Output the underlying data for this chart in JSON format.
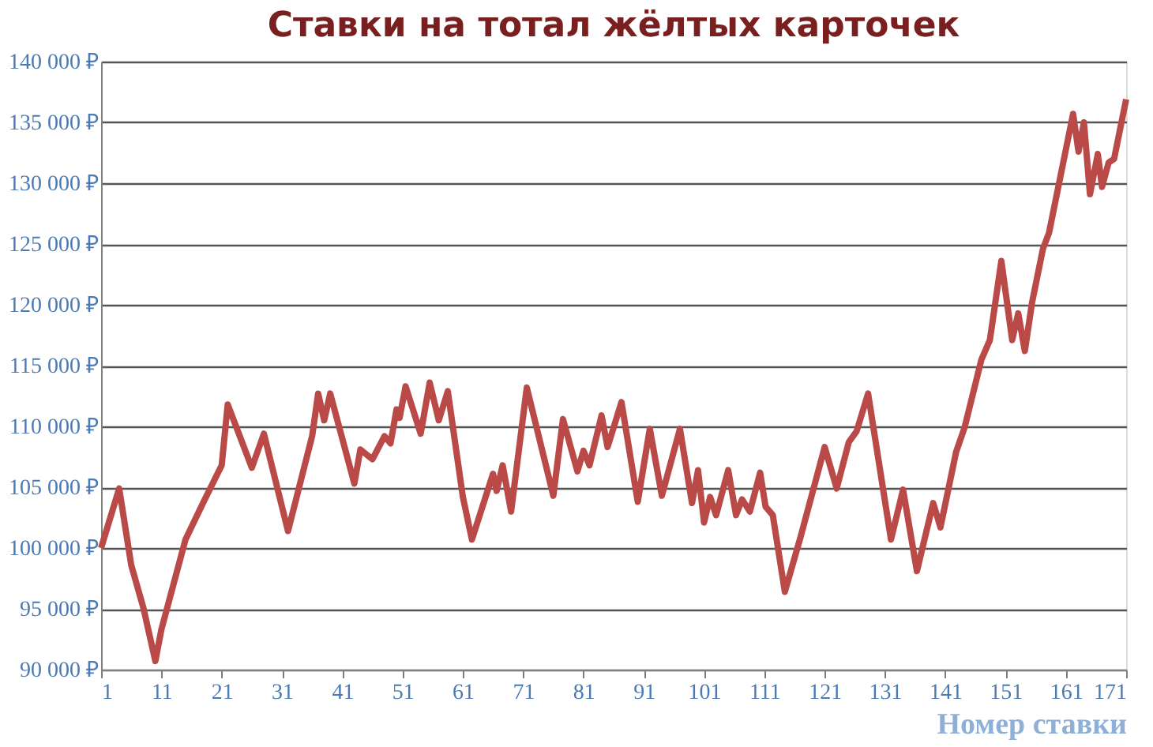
{
  "chart_data": {
    "type": "line",
    "title": "Ставки на тотал жёлтых карточек",
    "xlabel": "Номер ставки",
    "series": [
      {
        "color": "#b94a48",
        "x": [
          1,
          4,
          6,
          8,
          10,
          11,
          15,
          18,
          21,
          22,
          26,
          28,
          32,
          36,
          37,
          38,
          39,
          43,
          44,
          46,
          48,
          49,
          50,
          50.5,
          51.5,
          54,
          55.5,
          57,
          58.5,
          61,
          62.5,
          66,
          66.6,
          67.6,
          69,
          71.6,
          76,
          77.6,
          80,
          81,
          82,
          84,
          85,
          87.3,
          90,
          92,
          94,
          97,
          99,
          100,
          101,
          102,
          103,
          105,
          106.3,
          107.3,
          108.6,
          110.3,
          111.2,
          112.4,
          114.4,
          117,
          121,
          123,
          125,
          126.3,
          128.2,
          132,
          134,
          136.3,
          139,
          140.2,
          142.8,
          144.2,
          147,
          148.4,
          150.3,
          152.1,
          153.1,
          154.2,
          155.4,
          157.2,
          158.2,
          162.2,
          163.1,
          164,
          165,
          166.3,
          167,
          168.1,
          169,
          171
        ],
        "values": [
          100000,
          104900,
          98600,
          95100,
          90700,
          93300,
          100700,
          103800,
          106800,
          111800,
          106600,
          109400,
          101400,
          109200,
          112700,
          110500,
          112700,
          105300,
          108100,
          107300,
          109200,
          108600,
          111400,
          110700,
          113300,
          109400,
          113600,
          110500,
          112900,
          104200,
          100700,
          106100,
          104700,
          106800,
          103000,
          113200,
          104300,
          110600,
          106300,
          108000,
          106800,
          110900,
          108300,
          112000,
          103800,
          109800,
          104300,
          109800,
          103700,
          106400,
          102100,
          104200,
          102700,
          106400,
          102700,
          104000,
          103000,
          106200,
          103400,
          102700,
          96400,
          100900,
          108300,
          104900,
          108700,
          109600,
          112700,
          100700,
          104800,
          98100,
          103700,
          101700,
          107900,
          109900,
          115500,
          117100,
          123600,
          117100,
          119300,
          116200,
          120200,
          124600,
          125900,
          135700,
          132600,
          135000,
          129100,
          132400,
          129700,
          131700,
          132000,
          136900
        ]
      }
    ],
    "xlim": [
      1,
      171
    ],
    "xticks": [
      1,
      11,
      21,
      31,
      41,
      51,
      61,
      71,
      81,
      91,
      101,
      111,
      121,
      131,
      141,
      151,
      161,
      171
    ],
    "ylim": [
      90000,
      140000
    ],
    "yticks": [
      {
        "value": 90000,
        "label": "90 000 ₽"
      },
      {
        "value": 95000,
        "label": "95 000 ₽"
      },
      {
        "value": 100000,
        "label": "100 000 ₽"
      },
      {
        "value": 105000,
        "label": "105 000 ₽"
      },
      {
        "value": 110000,
        "label": "110 000 ₽"
      },
      {
        "value": 115000,
        "label": "115 000 ₽"
      },
      {
        "value": 120000,
        "label": "120 000 ₽"
      },
      {
        "value": 125000,
        "label": "125 000 ₽"
      },
      {
        "value": 130000,
        "label": "130 000 ₽"
      },
      {
        "value": 135000,
        "label": "135 000 ₽"
      },
      {
        "value": 140000,
        "label": "140 000 ₽"
      }
    ],
    "grid": "y",
    "legend": false
  }
}
